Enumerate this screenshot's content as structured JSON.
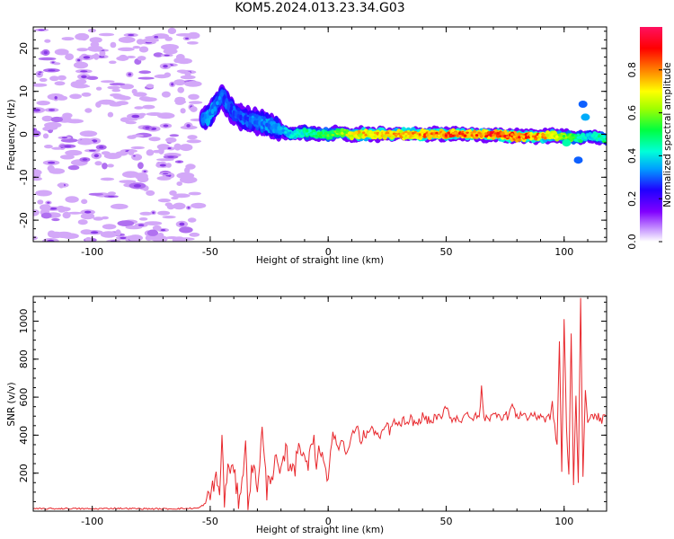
{
  "title": "KOM5.2024.013.23.34.G03",
  "chart_data": [
    {
      "type": "heatmap",
      "xlabel": "Height of straight line (km)",
      "ylabel": "Frequency (Hz)",
      "xlim": [
        -125,
        118
      ],
      "ylim": [
        -25,
        25
      ],
      "xticks": [
        -100,
        -50,
        0,
        50,
        100
      ],
      "yticks": [
        -20,
        -10,
        0,
        10,
        20
      ],
      "colorbar": {
        "label": "Normalized spectral amplitude",
        "range": [
          0,
          1
        ],
        "ticks": [
          0.0,
          0.2,
          0.4,
          0.6,
          0.8
        ]
      },
      "ridge": {
        "x": [
          -53,
          -50,
          -45,
          -40,
          -35,
          -30,
          -25,
          -20,
          -15,
          -10,
          -5,
          0,
          5,
          10,
          20,
          30,
          40,
          50,
          60,
          70,
          80,
          90,
          100,
          105,
          110,
          118
        ],
        "frequency_hz": [
          3.5,
          4.5,
          9,
          5,
          3.5,
          3,
          2,
          1,
          0,
          0.5,
          0,
          0,
          0.5,
          0,
          0,
          0,
          0,
          0,
          0,
          0,
          -0.5,
          -0.5,
          -0.5,
          -1,
          -0.5,
          -1
        ],
        "amplitude": [
          0.3,
          0.35,
          0.3,
          0.3,
          0.3,
          0.32,
          0.33,
          0.35,
          0.4,
          0.45,
          0.5,
          0.55,
          0.6,
          0.7,
          0.75,
          0.75,
          0.8,
          0.85,
          0.85,
          0.85,
          0.85,
          0.8,
          0.6,
          0.5,
          0.4,
          0.5
        ]
      }
    },
    {
      "type": "line",
      "xlabel": "Height of straight line (km)",
      "ylabel": "SNR (v/v)",
      "xlim": [
        -125,
        118
      ],
      "ylim": [
        0,
        1130
      ],
      "xticks": [
        -100,
        -50,
        0,
        50,
        100
      ],
      "yticks": [
        200,
        400,
        600,
        800,
        1000
      ],
      "series": [
        {
          "color": "#e8282d",
          "x": [
            -125,
            -110,
            -100,
            -90,
            -80,
            -70,
            -60,
            -55,
            -52,
            -50,
            -48,
            -46,
            -45,
            -44,
            -42,
            -40,
            -38,
            -36,
            -35,
            -34,
            -32,
            -30,
            -28,
            -26,
            -25,
            -24,
            -22,
            -20,
            -18,
            -16,
            -15,
            -14,
            -12,
            -10,
            -8,
            -6,
            -5,
            -4,
            -2,
            0,
            2,
            4,
            5,
            6,
            8,
            10,
            12,
            14,
            15,
            16,
            18,
            20,
            22,
            24,
            25,
            26,
            28,
            30,
            32,
            34,
            35,
            36,
            38,
            40,
            42,
            44,
            45,
            46,
            48,
            50,
            52,
            54,
            55,
            56,
            58,
            60,
            62,
            64,
            65,
            66,
            67,
            68,
            70,
            72,
            74,
            75,
            76,
            78,
            80,
            82,
            84,
            85,
            86,
            88,
            90,
            92,
            94,
            95,
            96,
            97,
            98,
            99,
            100,
            101,
            102,
            103,
            104,
            105,
            106,
            107,
            108,
            109,
            110,
            111,
            112,
            114,
            116,
            118
          ],
          "values": [
            12,
            14,
            12,
            15,
            13,
            12,
            14,
            16,
            40,
            80,
            180,
            100,
            380,
            60,
            250,
            200,
            60,
            220,
            330,
            60,
            240,
            130,
            420,
            100,
            200,
            190,
            260,
            180,
            320,
            210,
            280,
            230,
            360,
            290,
            260,
            400,
            240,
            320,
            300,
            180,
            420,
            330,
            350,
            380,
            300,
            390,
            450,
            360,
            410,
            400,
            430,
            420,
            380,
            440,
            460,
            420,
            470,
            450,
            480,
            440,
            490,
            470,
            460,
            500,
            480,
            470,
            490,
            500,
            480,
            560,
            490,
            480,
            500,
            470,
            520,
            480,
            500,
            490,
            650,
            480,
            510,
            490,
            500,
            520,
            490,
            510,
            500,
            560,
            490,
            520,
            500,
            480,
            520,
            490,
            510,
            480,
            500,
            560,
            440,
            350,
            900,
            200,
            1010,
            420,
            180,
            950,
            130,
            620,
            150,
            1130,
            180,
            620,
            480,
            510,
            490,
            500,
            480,
            500
          ]
        }
      ]
    }
  ]
}
